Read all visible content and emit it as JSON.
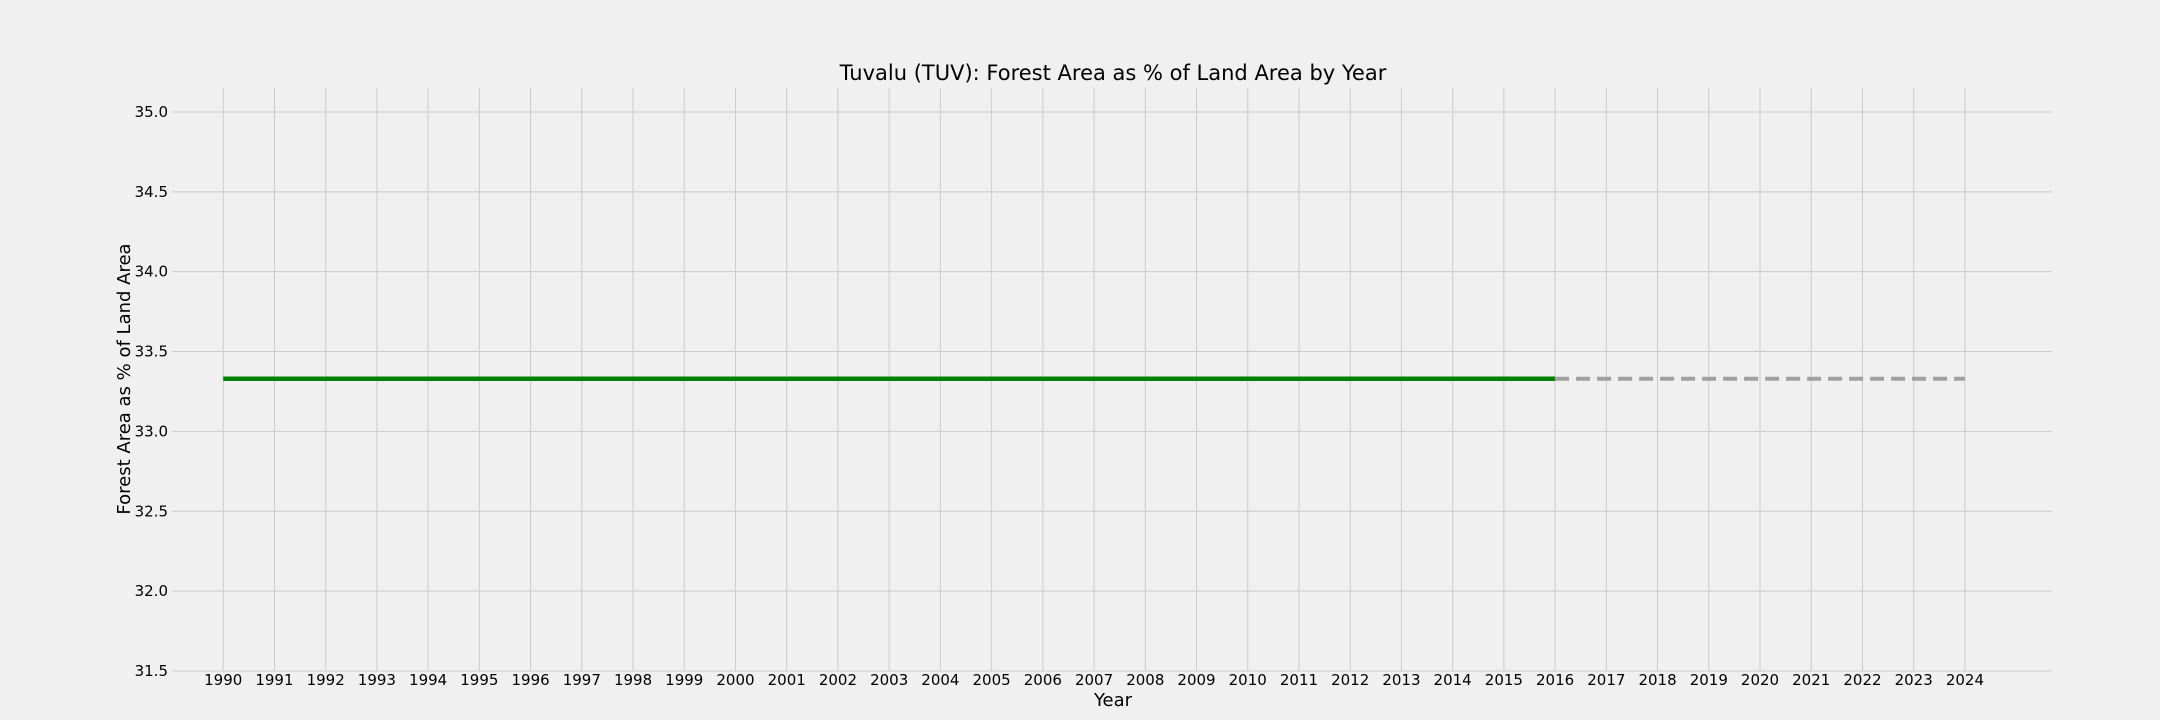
{
  "chart_data": {
    "type": "line",
    "title": "Tuvalu (TUV): Forest Area as % of Land Area by Year",
    "xlabel": "Year",
    "ylabel": "Forest Area as % of Land Area",
    "ylim": [
      31.5,
      35.15
    ],
    "xlim": [
      1989.0,
      2025.7
    ],
    "y_ticks": [
      "31.5",
      "32.0",
      "32.5",
      "33.0",
      "33.5",
      "34.0",
      "34.5",
      "35.0"
    ],
    "x_ticks": [
      "1990",
      "1991",
      "1992",
      "1993",
      "1994",
      "1995",
      "1996",
      "1997",
      "1998",
      "1999",
      "2000",
      "2001",
      "2002",
      "2003",
      "2004",
      "2005",
      "2006",
      "2007",
      "2008",
      "2009",
      "2010",
      "2011",
      "2012",
      "2013",
      "2014",
      "2015",
      "2016",
      "2017",
      "2018",
      "2019",
      "2020",
      "2021",
      "2022",
      "2023",
      "2024"
    ],
    "grid": true,
    "series": [
      {
        "style": "solid",
        "color": "#008000",
        "x": [
          1990,
          1991,
          1992,
          1993,
          1994,
          1995,
          1996,
          1997,
          1998,
          1999,
          2000,
          2001,
          2002,
          2003,
          2004,
          2005,
          2006,
          2007,
          2008,
          2009,
          2010,
          2011,
          2012,
          2013,
          2014,
          2015,
          2016
        ],
        "values": [
          33.33,
          33.33,
          33.33,
          33.33,
          33.33,
          33.33,
          33.33,
          33.33,
          33.33,
          33.33,
          33.33,
          33.33,
          33.33,
          33.33,
          33.33,
          33.33,
          33.33,
          33.33,
          33.33,
          33.33,
          33.33,
          33.33,
          33.33,
          33.33,
          33.33,
          33.33,
          33.33
        ]
      },
      {
        "style": "dashed",
        "color": "#a0a0a0",
        "x": [
          2016,
          2017,
          2018,
          2019,
          2020,
          2021,
          2022,
          2023,
          2024
        ],
        "values": [
          33.33,
          33.33,
          33.33,
          33.33,
          33.33,
          33.33,
          33.33,
          33.33,
          33.33
        ]
      }
    ]
  }
}
